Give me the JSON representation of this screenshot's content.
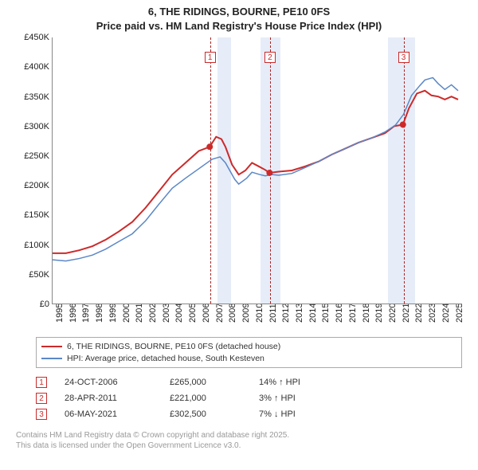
{
  "title": {
    "line1": "6, THE RIDINGS, BOURNE, PE10 0FS",
    "line2": "Price paid vs. HM Land Registry's House Price Index (HPI)"
  },
  "chart": {
    "type": "line",
    "x_range": [
      1995,
      2025.8
    ],
    "y_range": [
      0,
      450000
    ],
    "y_ticks": [
      0,
      50000,
      100000,
      150000,
      200000,
      250000,
      300000,
      350000,
      400000,
      450000
    ],
    "y_tick_labels": [
      "£0",
      "£50K",
      "£100K",
      "£150K",
      "£200K",
      "£250K",
      "£300K",
      "£350K",
      "£400K",
      "£450K"
    ],
    "x_ticks": [
      1995,
      1996,
      1997,
      1998,
      1999,
      2000,
      2001,
      2002,
      2003,
      2004,
      2005,
      2006,
      2007,
      2008,
      2009,
      2010,
      2011,
      2012,
      2013,
      2014,
      2015,
      2016,
      2017,
      2018,
      2019,
      2020,
      2021,
      2022,
      2023,
      2024,
      2025
    ],
    "background": "#ffffff",
    "bands": [
      {
        "from": 2007.4,
        "to": 2008.4,
        "color": "#e6edf8"
      },
      {
        "from": 2010.6,
        "to": 2012.1,
        "color": "#e6edf8"
      },
      {
        "from": 2020.2,
        "to": 2022.2,
        "color": "#e6edf8"
      }
    ],
    "markers": [
      {
        "n": "1",
        "x": 2006.82,
        "y": 265000
      },
      {
        "n": "2",
        "x": 2011.32,
        "y": 221000
      },
      {
        "n": "3",
        "x": 2021.35,
        "y": 302500
      }
    ],
    "sale_points": [
      {
        "x": 2006.82,
        "y": 265000
      },
      {
        "x": 2011.32,
        "y": 221000
      },
      {
        "x": 2021.35,
        "y": 302500
      }
    ],
    "series": [
      {
        "name": "6, THE RIDINGS, BOURNE, PE10 0FS (detached house)",
        "color": "#cc2a2a",
        "width": 2,
        "points": [
          [
            1995,
            85000
          ],
          [
            1996,
            85000
          ],
          [
            1997,
            90000
          ],
          [
            1998,
            97000
          ],
          [
            1999,
            108000
          ],
          [
            2000,
            122000
          ],
          [
            2001,
            138000
          ],
          [
            2002,
            162000
          ],
          [
            2003,
            190000
          ],
          [
            2004,
            218000
          ],
          [
            2005,
            238000
          ],
          [
            2006,
            258000
          ],
          [
            2006.82,
            265000
          ],
          [
            2007.3,
            282000
          ],
          [
            2007.7,
            278000
          ],
          [
            2008,
            265000
          ],
          [
            2008.5,
            235000
          ],
          [
            2009,
            218000
          ],
          [
            2009.5,
            225000
          ],
          [
            2010,
            238000
          ],
          [
            2010.5,
            232000
          ],
          [
            2011,
            226000
          ],
          [
            2011.32,
            221000
          ],
          [
            2012,
            223000
          ],
          [
            2013,
            225000
          ],
          [
            2014,
            232000
          ],
          [
            2015,
            240000
          ],
          [
            2016,
            252000
          ],
          [
            2017,
            262000
          ],
          [
            2018,
            272000
          ],
          [
            2019,
            280000
          ],
          [
            2020,
            288000
          ],
          [
            2020.7,
            300000
          ],
          [
            2021.35,
            302500
          ],
          [
            2021.8,
            330000
          ],
          [
            2022.4,
            355000
          ],
          [
            2023,
            360000
          ],
          [
            2023.5,
            352000
          ],
          [
            2024,
            350000
          ],
          [
            2024.5,
            345000
          ],
          [
            2025,
            350000
          ],
          [
            2025.5,
            345000
          ]
        ]
      },
      {
        "name": "HPI: Average price, detached house, South Kesteven",
        "color": "#5b87c7",
        "width": 1.5,
        "points": [
          [
            1995,
            74000
          ],
          [
            1996,
            72000
          ],
          [
            1997,
            76000
          ],
          [
            1998,
            82000
          ],
          [
            1999,
            92000
          ],
          [
            2000,
            105000
          ],
          [
            2001,
            118000
          ],
          [
            2002,
            140000
          ],
          [
            2003,
            168000
          ],
          [
            2004,
            195000
          ],
          [
            2005,
            212000
          ],
          [
            2006,
            228000
          ],
          [
            2007,
            244000
          ],
          [
            2007.6,
            248000
          ],
          [
            2008,
            238000
          ],
          [
            2008.7,
            210000
          ],
          [
            2009,
            202000
          ],
          [
            2009.6,
            212000
          ],
          [
            2010,
            222000
          ],
          [
            2010.6,
            218000
          ],
          [
            2011,
            216000
          ],
          [
            2011.5,
            218000
          ],
          [
            2012,
            217000
          ],
          [
            2013,
            220000
          ],
          [
            2014,
            230000
          ],
          [
            2015,
            240000
          ],
          [
            2016,
            252000
          ],
          [
            2017,
            262000
          ],
          [
            2018,
            272000
          ],
          [
            2019,
            280000
          ],
          [
            2020,
            290000
          ],
          [
            2020.8,
            302000
          ],
          [
            2021.4,
            320000
          ],
          [
            2022,
            352000
          ],
          [
            2022.6,
            368000
          ],
          [
            2023,
            378000
          ],
          [
            2023.6,
            382000
          ],
          [
            2024,
            372000
          ],
          [
            2024.5,
            362000
          ],
          [
            2025,
            370000
          ],
          [
            2025.5,
            360000
          ]
        ]
      }
    ]
  },
  "legend": {
    "rows": [
      {
        "color": "#cc2a2a",
        "label": "6, THE RIDINGS, BOURNE, PE10 0FS (detached house)"
      },
      {
        "color": "#5b87c7",
        "label": "HPI: Average price, detached house, South Kesteven"
      }
    ]
  },
  "sales": [
    {
      "n": "1",
      "date": "24-OCT-2006",
      "price": "£265,000",
      "delta": "14% ↑ HPI"
    },
    {
      "n": "2",
      "date": "28-APR-2011",
      "price": "£221,000",
      "delta": "3% ↑ HPI"
    },
    {
      "n": "3",
      "date": "06-MAY-2021",
      "price": "£302,500",
      "delta": "7% ↓ HPI"
    }
  ],
  "footer": {
    "line1": "Contains HM Land Registry data © Crown copyright and database right 2025.",
    "line2": "This data is licensed under the Open Government Licence v3.0."
  }
}
